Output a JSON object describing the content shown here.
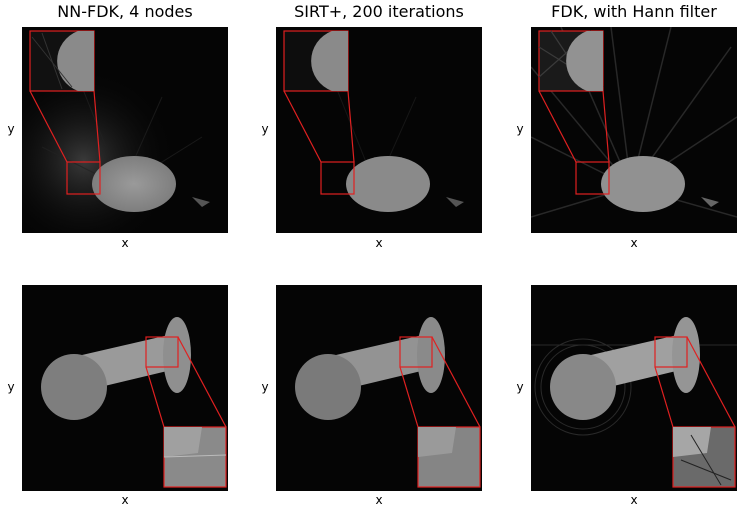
{
  "columns": [
    {
      "title": "NN-FDK, 4 nodes"
    },
    {
      "title": "SIRT+, 200 iterations"
    },
    {
      "title": "FDK, with Hann filter"
    }
  ],
  "axes": {
    "x_label": "x",
    "y_label": "y"
  },
  "colors": {
    "inset_outline": "#e02020",
    "background": "#050505",
    "object": "#8c8c8c"
  }
}
